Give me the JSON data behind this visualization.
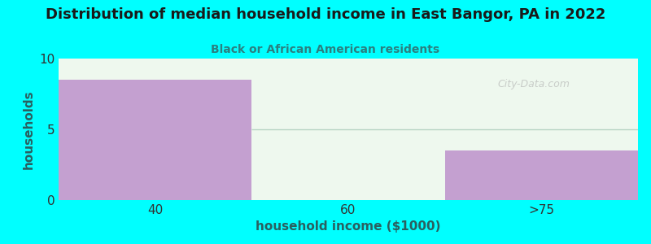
{
  "title": "Distribution of median household income in East Bangor, PA in 2022",
  "subtitle": "Black or African American residents",
  "title_color": "#1a1a1a",
  "subtitle_color": "#2a8080",
  "background_color": "#00ffff",
  "plot_bg_color": "#eef8ee",
  "bar_color": "#c4a0d0",
  "categories": [
    "40",
    "60",
    ">75"
  ],
  "values": [
    8.5,
    0,
    3.5
  ],
  "ylim": [
    0,
    10
  ],
  "yticks": [
    0,
    5,
    10
  ],
  "xlabel": "household income ($1000)",
  "ylabel": "households",
  "label_color": "#2a6060",
  "tick_color": "#333333",
  "watermark": "City-Data.com",
  "bar_width": 1.0,
  "title_fontsize": 13,
  "subtitle_fontsize": 10,
  "midline_color": "#b0d0c0",
  "midline_alpha": 0.9
}
